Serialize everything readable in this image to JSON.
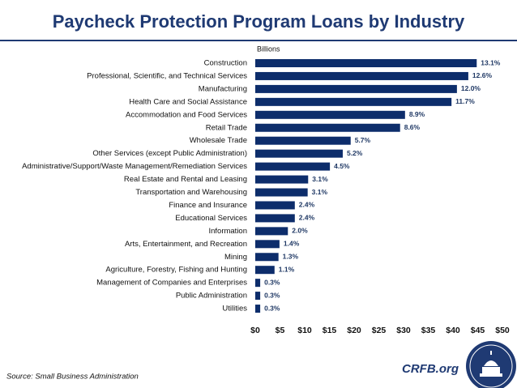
{
  "chart_data": {
    "type": "bar",
    "orientation": "horizontal",
    "title": "Paycheck Protection Program Loans by Industry",
    "axis_label": "Billions",
    "categories": [
      "Construction",
      "Professional, Scientific, and Technical Services",
      "Manufacturing",
      "Health Care and Social Assistance",
      "Accommodation and Food Services",
      "Retail Trade",
      "Wholesale Trade",
      "Other Services (except Public Administration)",
      "Administrative/Support/Waste Management/Remediation Services",
      "Real Estate and Rental and Leasing",
      "Transportation and Warehousing",
      "Finance and Insurance",
      "Educational Services",
      "Information",
      "Arts, Entertainment, and Recreation",
      "Mining",
      "Agriculture, Forestry, Fishing and Hunting",
      "Management of Companies and Enterprises",
      "Public Administration",
      "Utilities"
    ],
    "values": [
      44.8,
      43.1,
      40.8,
      39.7,
      30.3,
      29.3,
      19.3,
      17.7,
      15.1,
      10.7,
      10.6,
      8.0,
      8.0,
      6.6,
      4.9,
      4.7,
      3.9,
      1.0,
      1.0,
      1.0
    ],
    "share_labels": [
      "13.1%",
      "12.6%",
      "12.0%",
      "11.7%",
      "8.9%",
      "8.6%",
      "5.7%",
      "5.2%",
      "4.5%",
      "3.1%",
      "3.1%",
      "2.4%",
      "2.4%",
      "2.0%",
      "1.4%",
      "1.3%",
      "1.1%",
      "0.3%",
      "0.3%",
      "0.3%"
    ],
    "color": "#0d2d6b",
    "xlim": [
      0,
      50
    ],
    "xticks": [
      {
        "value": 0,
        "label": "$0"
      },
      {
        "value": 5,
        "label": "$5"
      },
      {
        "value": 10,
        "label": "$10"
      },
      {
        "value": 15,
        "label": "$15"
      },
      {
        "value": 20,
        "label": "$20"
      },
      {
        "value": 25,
        "label": "$25"
      },
      {
        "value": 30,
        "label": "$30"
      },
      {
        "value": 35,
        "label": "$35"
      },
      {
        "value": 40,
        "label": "$40"
      },
      {
        "value": 45,
        "label": "$45"
      },
      {
        "value": 50,
        "label": "$50"
      }
    ],
    "source": "Source: Small Business Administration",
    "brand": "CRFB.org"
  }
}
